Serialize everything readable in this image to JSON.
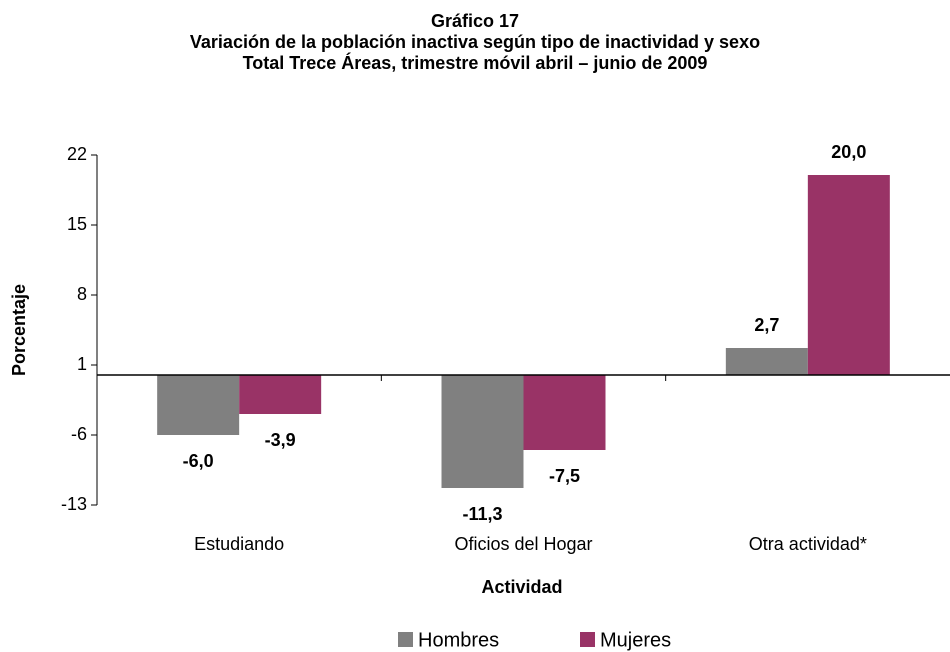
{
  "chart_data": {
    "type": "bar",
    "title": "Gráfico 17",
    "subtitle": [
      "Variación de la población inactiva según tipo de inactividad y sexo",
      "Total Trece Áreas, trimestre móvil abril – junio de 2009"
    ],
    "x_label": "Actividad",
    "y_label": "Porcentaje",
    "categories": [
      "Estudiando",
      "Oficios del Hogar",
      "Otra actividad*"
    ],
    "series": [
      {
        "name": "Hombres",
        "color": "#808080",
        "values": [
          -6.0,
          -11.3,
          2.7
        ],
        "value_labels": [
          "-6,0",
          "-11,3",
          "2,7"
        ]
      },
      {
        "name": "Mujeres",
        "color": "#993366",
        "values": [
          -3.9,
          -7.5,
          20.0
        ],
        "value_labels": [
          "-3,9",
          "-7,5",
          "20,0"
        ]
      }
    ],
    "ylim": [
      -13,
      22
    ],
    "yticks": [
      -13,
      -6,
      1,
      8,
      15,
      22
    ],
    "legend": "bottom",
    "grid": false
  }
}
